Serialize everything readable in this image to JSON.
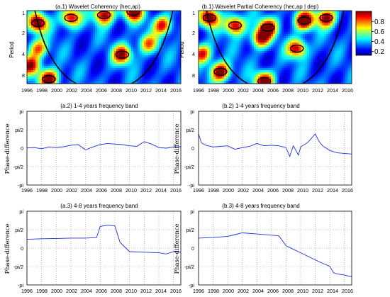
{
  "x_ticks": [
    "1996",
    "1998",
    "2000",
    "2002",
    "2004",
    "2006",
    "2008",
    "2010",
    "2012",
    "2014",
    "2016"
  ],
  "colorbar": {
    "ticks": [
      "0.8",
      "0.6",
      "0.4",
      "0.2"
    ]
  },
  "colors": {
    "line": "#1f2ed8",
    "bg": "#ffffff",
    "grid": "#8a8a8a"
  },
  "chart_data": [
    {
      "type": "heatmap",
      "title": "(a.1)  Wavelet Coherency (hec,ap)",
      "ylabel": "Period",
      "yticks": [
        "1",
        "2",
        "4",
        "8"
      ],
      "xlim": [
        1996,
        2017
      ],
      "grid": false,
      "hotspots": [
        {
          "t": 1997.5,
          "p": 1.4,
          "v": 0.9
        },
        {
          "t": 2002.0,
          "p": 1.2,
          "v": 0.8
        },
        {
          "t": 2006.5,
          "p": 1.1,
          "v": 0.85
        },
        {
          "t": 2010.5,
          "p": 1.0,
          "v": 0.9
        },
        {
          "t": 2012.5,
          "p": 2.6,
          "v": 0.55
        },
        {
          "t": 2009.0,
          "p": 3.6,
          "v": 0.8
        },
        {
          "t": 2014.5,
          "p": 1.5,
          "v": 0.7
        },
        {
          "t": 1996.5,
          "p": 5.0,
          "v": 0.75
        },
        {
          "t": 1999.0,
          "p": 7.5,
          "v": 0.9
        },
        {
          "t": 1997.5,
          "p": 3.0,
          "v": 0.6
        }
      ]
    },
    {
      "type": "heatmap",
      "title": "(b.1)  Wavelet Partial Coherency (hec,ap | dep)",
      "ylabel": "Period",
      "yticks": [
        "1",
        "2",
        "4",
        "8"
      ],
      "xlim": [
        1996,
        2017
      ],
      "grid": false,
      "hotspots": [
        {
          "t": 1997.5,
          "p": 1.2,
          "v": 0.9
        },
        {
          "t": 2001.0,
          "p": 1.5,
          "v": 0.85
        },
        {
          "t": 2005.5,
          "p": 1.6,
          "v": 0.8
        },
        {
          "t": 2010.5,
          "p": 1.3,
          "v": 0.95
        },
        {
          "t": 2013.5,
          "p": 1.2,
          "v": 0.85
        },
        {
          "t": 2004.5,
          "p": 2.2,
          "v": 0.75
        },
        {
          "t": 2009.5,
          "p": 3.0,
          "v": 0.8
        },
        {
          "t": 1996.5,
          "p": 3.5,
          "v": 0.7
        },
        {
          "t": 1999.0,
          "p": 6.0,
          "v": 0.9
        },
        {
          "t": 2005.0,
          "p": 8.0,
          "v": 0.9
        }
      ]
    },
    {
      "type": "line",
      "title": "(a.2)  1-4 years frequency band",
      "ylabel": "Phase-difference",
      "yticks": [
        "pi",
        "pi/2",
        "0",
        "-pi/2",
        "-pi"
      ],
      "ylim": [
        -3.1416,
        3.1416
      ],
      "xlim": [
        1996,
        2017
      ],
      "grid": true,
      "x": [
        1996,
        1997,
        1998,
        1999,
        2000,
        2001,
        2002,
        2003,
        2004,
        2005,
        2006,
        2007,
        2008,
        2009,
        2010,
        2011,
        2012,
        2013,
        2014,
        2015,
        2016,
        2017
      ],
      "y": [
        0.02,
        0.05,
        -0.05,
        0.1,
        0.05,
        0.12,
        0.25,
        0.3,
        -0.15,
        0.1,
        0.3,
        0.4,
        0.35,
        0.3,
        0.2,
        0.15,
        0.55,
        0.35,
        0.05,
        0.0,
        0.1,
        0.12
      ]
    },
    {
      "type": "line",
      "title": "(b.2)  1-4 years frequency band",
      "ylabel": "Phase-difference",
      "yticks": [
        "pi",
        "pi/2",
        "0",
        "-pi/2",
        "-pi"
      ],
      "ylim": [
        -3.1416,
        3.1416
      ],
      "xlim": [
        1996,
        2017
      ],
      "grid": true,
      "x": [
        1996,
        1996.4,
        1997,
        1998,
        1999,
        2000,
        2001,
        2002,
        2003,
        2004,
        2005,
        2006,
        2007,
        2008,
        2008.5,
        2009,
        2009.7,
        2010,
        2011,
        2012,
        2012.5,
        2013,
        2014,
        2015,
        2016,
        2017
      ],
      "y": [
        1.2,
        0.45,
        0.25,
        0.1,
        0.15,
        0.2,
        -0.1,
        0.05,
        0.15,
        0.4,
        0.2,
        0.25,
        0.2,
        0.05,
        -0.7,
        0.2,
        -0.6,
        0.1,
        0.5,
        1.2,
        0.6,
        0.2,
        -0.2,
        -0.4,
        -0.45,
        -0.5
      ]
    },
    {
      "type": "line",
      "title": "(a.3)  4-8 years frequency band",
      "ylabel": "Phase-difference",
      "yticks": [
        "pi",
        "pi/2",
        "0",
        "-pi/2",
        "-pi"
      ],
      "ylim": [
        -3.1416,
        3.1416
      ],
      "xlim": [
        1996,
        2017
      ],
      "grid": true,
      "x": [
        1996,
        1998,
        2000,
        2002,
        2004,
        2005.5,
        2006,
        2007,
        2008,
        2008.7,
        2009.5,
        2010,
        2012,
        2014,
        2015,
        2016,
        2017
      ],
      "y": [
        0.75,
        0.8,
        0.82,
        0.85,
        0.85,
        0.9,
        1.85,
        1.95,
        1.9,
        0.5,
        0.0,
        -0.3,
        -0.35,
        -0.4,
        -0.5,
        -0.3,
        -0.35
      ]
    },
    {
      "type": "line",
      "title": "(b.3)  4-8 years frequency band",
      "ylabel": "Phase-difference",
      "yticks": [
        "pi",
        "pi/2",
        "0",
        "-pi/2",
        "-pi"
      ],
      "ylim": [
        -3.1416,
        3.1416
      ],
      "xlim": [
        1996,
        2017
      ],
      "grid": true,
      "x": [
        1996,
        1998,
        2000,
        2001,
        2002,
        2004,
        2006,
        2007,
        2008,
        2009,
        2010,
        2011,
        2012,
        2013,
        2014,
        2014.5,
        2015,
        2016,
        2017
      ],
      "y": [
        0.85,
        0.9,
        1.0,
        1.15,
        1.3,
        1.2,
        1.1,
        1.05,
        0.2,
        -0.1,
        -0.4,
        -0.7,
        -1.0,
        -1.3,
        -1.55,
        -2.1,
        -2.2,
        -2.3,
        -2.45
      ]
    }
  ]
}
